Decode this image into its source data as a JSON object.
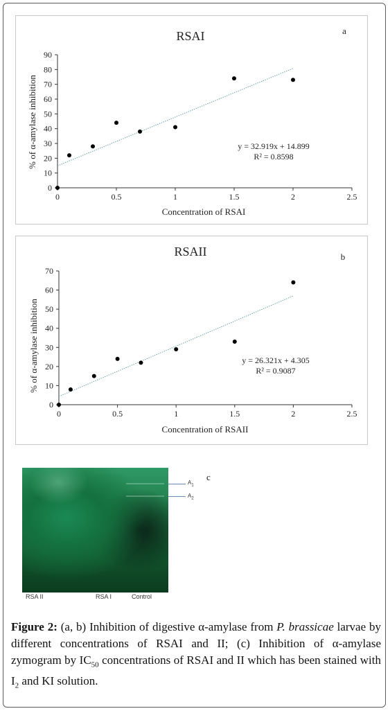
{
  "chart_data": [
    {
      "type": "scatter",
      "title": "RSAI",
      "panel_label": "a",
      "xlabel": "Concentration of RSAI",
      "ylabel": "% of α-amylase inhibition",
      "xlim": [
        0,
        2.5
      ],
      "ylim": [
        0,
        90
      ],
      "x_ticks": [
        "0",
        "0.5",
        "1",
        "1.5",
        "2",
        "2.5"
      ],
      "y_ticks": [
        "0",
        "10",
        "20",
        "30",
        "40",
        "50",
        "60",
        "70",
        "80",
        "90"
      ],
      "points": [
        {
          "x": 0,
          "y": 0
        },
        {
          "x": 0.1,
          "y": 22
        },
        {
          "x": 0.3,
          "y": 28
        },
        {
          "x": 0.5,
          "y": 44
        },
        {
          "x": 0.7,
          "y": 38
        },
        {
          "x": 1,
          "y": 41
        },
        {
          "x": 1.5,
          "y": 74
        },
        {
          "x": 2,
          "y": 73
        }
      ],
      "trendline": {
        "slope": 32.919,
        "intercept": 14.899,
        "x_range": [
          0,
          2
        ]
      },
      "equation": "y = 32.919x + 14.899",
      "r_squared": "R² = 0.8598",
      "grid": false
    },
    {
      "type": "scatter",
      "title": "RSAII",
      "panel_label": "b",
      "xlabel": "Concentration of RSAII",
      "ylabel": "% of α-amylase inhibition",
      "xlim": [
        0,
        2.5
      ],
      "ylim": [
        0,
        70
      ],
      "x_ticks": [
        "0",
        "0.5",
        "1",
        "1.5",
        "2",
        "2.5"
      ],
      "y_ticks": [
        "0",
        "10",
        "20",
        "30",
        "40",
        "50",
        "60",
        "70"
      ],
      "points": [
        {
          "x": 0,
          "y": 0
        },
        {
          "x": 0.1,
          "y": 8
        },
        {
          "x": 0.3,
          "y": 15
        },
        {
          "x": 0.5,
          "y": 24
        },
        {
          "x": 0.7,
          "y": 22
        },
        {
          "x": 1,
          "y": 29
        },
        {
          "x": 1.5,
          "y": 33
        },
        {
          "x": 2,
          "y": 64
        }
      ],
      "trendline": {
        "slope": 26.321,
        "intercept": 4.305,
        "x_range": [
          0,
          2
        ]
      },
      "equation": "y = 26.321x + 4.305",
      "r_squared": "R² = 0.9087",
      "grid": false
    }
  ],
  "zymogram": {
    "panel_label": "c",
    "lane_labels": [
      "RSA II",
      "RSA I",
      "Control"
    ],
    "band_markers": [
      "A",
      "A"
    ],
    "band_marker_subs": [
      "1",
      "2"
    ]
  },
  "caption": {
    "label": "Figure 2:",
    "part1": " (a, b) Inhibition of digestive α-amylase from ",
    "species": "P. brassicae",
    "part2": " larvae by different concentrations of RSAI and II; (c) Inhibition of α-amylase zymogram by IC",
    "ic_sub": "50",
    "part3": " concentrations of RSAI and II which has been stained with I",
    "i_sub": "2",
    "part4": " and KI solution."
  },
  "colors": {
    "trendline": "#6f9fb0",
    "points": "#000000",
    "axis": "#333333",
    "panel_border": "#c9c9c9"
  }
}
